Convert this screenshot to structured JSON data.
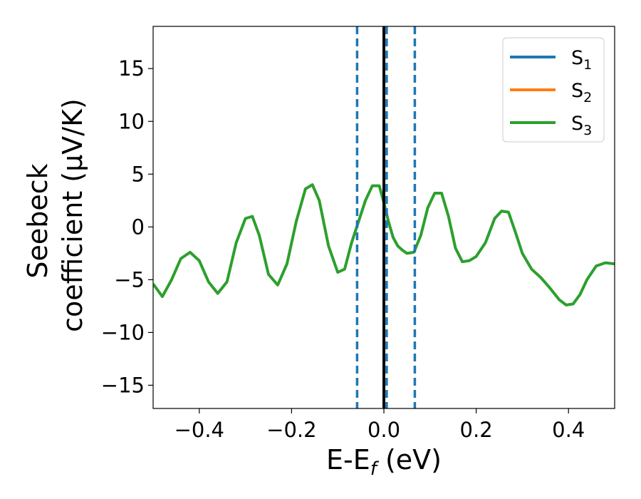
{
  "chart_data": {
    "type": "line",
    "title": "",
    "xlabel": {
      "main": "E-E",
      "sub": "f",
      "unit": " (eV)"
    },
    "ylabel": {
      "line1": "Seebeck",
      "line2": "coefficient  (μV/K)"
    },
    "xlim": [
      -0.5,
      0.5
    ],
    "ylim": [
      -17.2,
      19.0
    ],
    "xticks": [
      -0.4,
      -0.2,
      0.0,
      0.2,
      0.4
    ],
    "xtick_labels": [
      "−0.4",
      "−0.2",
      "0.0",
      "0.2",
      "0.4"
    ],
    "yticks": [
      -15,
      -10,
      -5,
      0,
      5,
      10,
      15
    ],
    "ytick_labels": [
      "−15",
      "−10",
      "−5",
      "0",
      "5",
      "10",
      "15"
    ],
    "grid": false,
    "legend_position": "top-right",
    "series": [
      {
        "name": "S",
        "sub": "1",
        "color": "#1f77b4",
        "x": [],
        "y": []
      },
      {
        "name": "S",
        "sub": "2",
        "color": "#ff7f0e",
        "x": [],
        "y": []
      },
      {
        "name": "S",
        "sub": "3",
        "color": "#2ca02c",
        "x": [
          -0.5,
          -0.48,
          -0.46,
          -0.44,
          -0.42,
          -0.4,
          -0.38,
          -0.36,
          -0.34,
          -0.32,
          -0.3,
          -0.285,
          -0.27,
          -0.25,
          -0.23,
          -0.21,
          -0.19,
          -0.17,
          -0.155,
          -0.14,
          -0.12,
          -0.1,
          -0.085,
          -0.07,
          -0.055,
          -0.04,
          -0.025,
          -0.01,
          0.0,
          0.01,
          0.02,
          0.03,
          0.04,
          0.05,
          0.065,
          0.08,
          0.095,
          0.11,
          0.125,
          0.14,
          0.155,
          0.17,
          0.185,
          0.2,
          0.22,
          0.24,
          0.255,
          0.27,
          0.285,
          0.3,
          0.32,
          0.34,
          0.36,
          0.38,
          0.395,
          0.41,
          0.425,
          0.44,
          0.46,
          0.48,
          0.5
        ],
        "y": [
          -5.4,
          -6.6,
          -5.0,
          -3.0,
          -2.4,
          -3.2,
          -5.2,
          -6.3,
          -5.2,
          -1.5,
          0.8,
          1.0,
          -0.8,
          -4.5,
          -5.5,
          -3.5,
          0.5,
          3.6,
          4.0,
          2.5,
          -1.8,
          -4.3,
          -4.0,
          -1.5,
          0.5,
          2.5,
          3.9,
          3.9,
          2.3,
          0.5,
          -1.0,
          -1.8,
          -2.2,
          -2.5,
          -2.4,
          -0.8,
          1.8,
          3.2,
          3.2,
          1.0,
          -2.0,
          -3.3,
          -3.2,
          -2.8,
          -1.5,
          0.8,
          1.5,
          1.4,
          -0.5,
          -2.5,
          -4.0,
          -4.8,
          -5.8,
          -6.9,
          -7.4,
          -7.3,
          -6.4,
          -5.0,
          -3.7,
          -3.4,
          -3.5
        ]
      }
    ],
    "vlines": [
      {
        "x": -0.058,
        "style": "dashed",
        "color": "#1f77b4"
      },
      {
        "x": 0.006,
        "style": "dashed",
        "color": "#1f77b4"
      },
      {
        "x": 0.067,
        "style": "dashed",
        "color": "#1f77b4"
      },
      {
        "x": 0.0,
        "style": "solid",
        "color": "#000000"
      }
    ]
  }
}
